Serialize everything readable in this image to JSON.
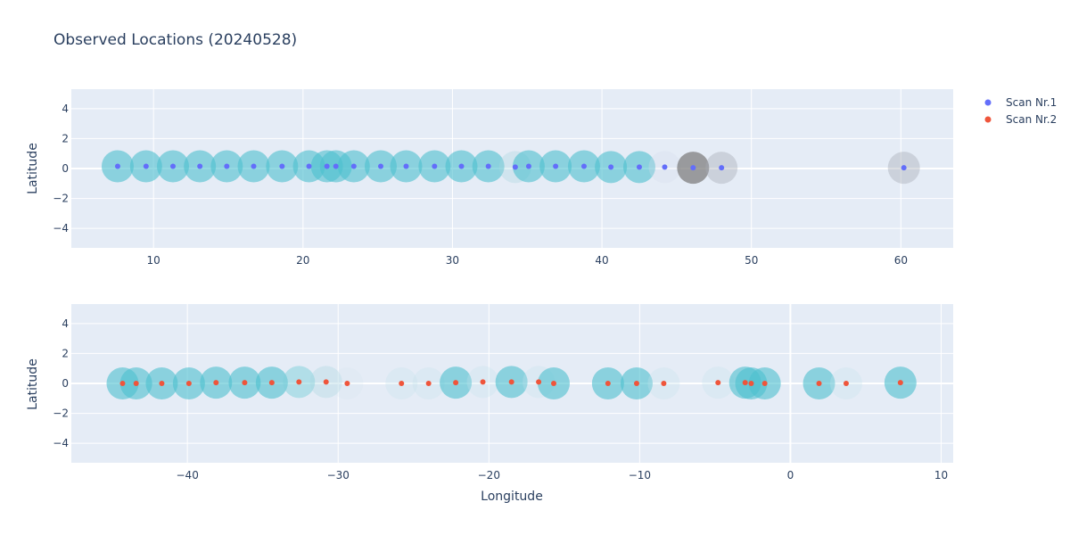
{
  "chart_data": [
    {
      "type": "scatter",
      "title": "Observed Locations (20240528)",
      "xlabel": "",
      "ylabel": "Latitude",
      "xlim": [
        4.5,
        63.5
      ],
      "ylim": [
        -5.3,
        5.3
      ],
      "xticks": [
        "10",
        "20",
        "30",
        "40",
        "50",
        "60"
      ],
      "yticks": [
        "4",
        "2",
        "0",
        "−2",
        "−4"
      ],
      "grid": true,
      "series": [
        {
          "name": "Scan Nr.1",
          "color": "#636efa",
          "x": [
            7.6,
            9.5,
            11.3,
            13.1,
            14.9,
            16.7,
            18.6,
            20.4,
            21.6,
            22.2,
            23.4,
            25.2,
            26.9,
            28.8,
            30.6,
            32.4,
            34.2,
            35.1,
            36.9,
            38.8,
            40.6,
            42.5,
            44.2,
            46.1,
            48.0,
            60.2
          ],
          "y": [
            0.15,
            0.15,
            0.15,
            0.15,
            0.15,
            0.15,
            0.15,
            0.15,
            0.15,
            0.15,
            0.15,
            0.15,
            0.15,
            0.15,
            0.15,
            0.15,
            0.1,
            0.15,
            0.15,
            0.15,
            0.1,
            0.1,
            0.1,
            0.05,
            0.05,
            0.05
          ]
        }
      ],
      "bubbles": [
        {
          "x": 7.6,
          "y": 0.15,
          "level": 0.6,
          "color": "#4dbfcf"
        },
        {
          "x": 9.5,
          "y": 0.15,
          "level": 0.6,
          "color": "#4dbfcf"
        },
        {
          "x": 11.3,
          "y": 0.15,
          "level": 0.6,
          "color": "#4dbfcf"
        },
        {
          "x": 13.1,
          "y": 0.15,
          "level": 0.6,
          "color": "#4dbfcf"
        },
        {
          "x": 14.9,
          "y": 0.15,
          "level": 0.6,
          "color": "#4dbfcf"
        },
        {
          "x": 16.7,
          "y": 0.15,
          "level": 0.6,
          "color": "#4dbfcf"
        },
        {
          "x": 18.6,
          "y": 0.15,
          "level": 0.6,
          "color": "#4dbfcf"
        },
        {
          "x": 20.4,
          "y": 0.15,
          "level": 0.6,
          "color": "#4dbfcf"
        },
        {
          "x": 21.6,
          "y": 0.15,
          "level": 0.6,
          "color": "#4dbfcf"
        },
        {
          "x": 22.2,
          "y": 0.15,
          "level": 0.6,
          "color": "#4dbfcf"
        },
        {
          "x": 23.4,
          "y": 0.15,
          "level": 0.6,
          "color": "#4dbfcf"
        },
        {
          "x": 25.2,
          "y": 0.15,
          "level": 0.6,
          "color": "#4dbfcf"
        },
        {
          "x": 26.9,
          "y": 0.15,
          "level": 0.6,
          "color": "#4dbfcf"
        },
        {
          "x": 28.8,
          "y": 0.15,
          "level": 0.6,
          "color": "#4dbfcf"
        },
        {
          "x": 30.6,
          "y": 0.15,
          "level": 0.6,
          "color": "#4dbfcf"
        },
        {
          "x": 32.4,
          "y": 0.15,
          "level": 0.6,
          "color": "#4dbfcf"
        },
        {
          "x": 34.2,
          "y": 0.1,
          "level": 0.35,
          "color": "#a8d8df"
        },
        {
          "x": 35.1,
          "y": 0.15,
          "level": 0.6,
          "color": "#4dbfcf"
        },
        {
          "x": 36.9,
          "y": 0.15,
          "level": 0.6,
          "color": "#4dbfcf"
        },
        {
          "x": 38.8,
          "y": 0.15,
          "level": 0.6,
          "color": "#4dbfcf"
        },
        {
          "x": 40.6,
          "y": 0.1,
          "level": 0.6,
          "color": "#4dbfcf"
        },
        {
          "x": 42.5,
          "y": 0.1,
          "level": 0.6,
          "color": "#4dbfcf"
        },
        {
          "x": 44.2,
          "y": 0.1,
          "level": 0.3,
          "color": "#d3dcea"
        },
        {
          "x": 46.1,
          "y": 0.05,
          "level": 0.75,
          "color": "#7f7f7f"
        },
        {
          "x": 48.0,
          "y": 0.05,
          "level": 0.4,
          "color": "#a5a9b3"
        },
        {
          "x": 60.2,
          "y": 0.05,
          "level": 0.4,
          "color": "#a5a9b3"
        }
      ]
    },
    {
      "type": "scatter",
      "title": "",
      "xlabel": "Longitude",
      "ylabel": "Latitude",
      "xlim": [
        -47.7,
        10.8
      ],
      "ylim": [
        -5.3,
        5.3
      ],
      "xticks": [
        "−40",
        "−30",
        "−20",
        "−10",
        "0",
        "10"
      ],
      "yticks": [
        "4",
        "2",
        "0",
        "−2",
        "−4"
      ],
      "grid": true,
      "series": [
        {
          "name": "Scan Nr.2",
          "color": "#ef553b",
          "x": [
            -44.3,
            -43.4,
            -41.7,
            -39.9,
            -38.1,
            -36.2,
            -34.4,
            -32.6,
            -30.8,
            -29.4,
            -25.8,
            -24.0,
            -22.2,
            -20.4,
            -18.5,
            -16.7,
            -15.7,
            -12.1,
            -10.2,
            -8.4,
            -4.8,
            -3.0,
            -2.6,
            -1.7,
            1.9,
            3.7,
            7.3
          ],
          "y": [
            0.0,
            0.0,
            0.0,
            0.0,
            0.05,
            0.05,
            0.05,
            0.1,
            0.1,
            0.0,
            0.0,
            0.0,
            0.05,
            0.1,
            0.1,
            0.1,
            0.0,
            0.0,
            0.0,
            0.0,
            0.05,
            0.05,
            0.0,
            0.0,
            0.0,
            0.0,
            0.05
          ]
        }
      ],
      "bubbles": [
        {
          "x": -44.3,
          "y": 0.0,
          "level": 0.6,
          "color": "#4dbfcf"
        },
        {
          "x": -43.4,
          "y": 0.0,
          "level": 0.6,
          "color": "#4dbfcf"
        },
        {
          "x": -41.7,
          "y": 0.0,
          "level": 0.6,
          "color": "#4dbfcf"
        },
        {
          "x": -39.9,
          "y": 0.0,
          "level": 0.6,
          "color": "#4dbfcf"
        },
        {
          "x": -38.1,
          "y": 0.05,
          "level": 0.6,
          "color": "#4dbfcf"
        },
        {
          "x": -36.2,
          "y": 0.05,
          "level": 0.6,
          "color": "#4dbfcf"
        },
        {
          "x": -34.4,
          "y": 0.05,
          "level": 0.6,
          "color": "#4dbfcf"
        },
        {
          "x": -32.6,
          "y": 0.1,
          "level": 0.5,
          "color": "#7dcfd9"
        },
        {
          "x": -30.8,
          "y": 0.1,
          "level": 0.35,
          "color": "#a8d8df"
        },
        {
          "x": -29.4,
          "y": 0.0,
          "level": 0.2,
          "color": "#d3e6ef"
        },
        {
          "x": -25.8,
          "y": 0.0,
          "level": 0.3,
          "color": "#c4e0ea"
        },
        {
          "x": -24.0,
          "y": 0.0,
          "level": 0.3,
          "color": "#c4e0ea"
        },
        {
          "x": -22.2,
          "y": 0.05,
          "level": 0.6,
          "color": "#4dbfcf"
        },
        {
          "x": -20.4,
          "y": 0.1,
          "level": 0.3,
          "color": "#c4e0ea"
        },
        {
          "x": -18.5,
          "y": 0.1,
          "level": 0.6,
          "color": "#4dbfcf"
        },
        {
          "x": -16.7,
          "y": 0.1,
          "level": 0.3,
          "color": "#c4e0ea"
        },
        {
          "x": -15.7,
          "y": 0.0,
          "level": 0.6,
          "color": "#4dbfcf"
        },
        {
          "x": -12.1,
          "y": 0.0,
          "level": 0.6,
          "color": "#4dbfcf"
        },
        {
          "x": -10.2,
          "y": 0.0,
          "level": 0.6,
          "color": "#4dbfcf"
        },
        {
          "x": -8.4,
          "y": 0.0,
          "level": 0.3,
          "color": "#c4e0ea"
        },
        {
          "x": -4.8,
          "y": 0.05,
          "level": 0.3,
          "color": "#c4e0ea"
        },
        {
          "x": -3.0,
          "y": 0.05,
          "level": 0.6,
          "color": "#4dbfcf"
        },
        {
          "x": -2.6,
          "y": 0.0,
          "level": 0.6,
          "color": "#4dbfcf"
        },
        {
          "x": -1.7,
          "y": 0.0,
          "level": 0.6,
          "color": "#4dbfcf"
        },
        {
          "x": 1.9,
          "y": 0.0,
          "level": 0.6,
          "color": "#4dbfcf"
        },
        {
          "x": 3.7,
          "y": 0.0,
          "level": 0.3,
          "color": "#c4e0ea"
        },
        {
          "x": 7.3,
          "y": 0.05,
          "level": 0.6,
          "color": "#4dbfcf"
        }
      ]
    }
  ],
  "legend": [
    {
      "name": "Scan Nr.1",
      "color": "#636efa"
    },
    {
      "name": "Scan Nr.2",
      "color": "#ef553b"
    }
  ]
}
